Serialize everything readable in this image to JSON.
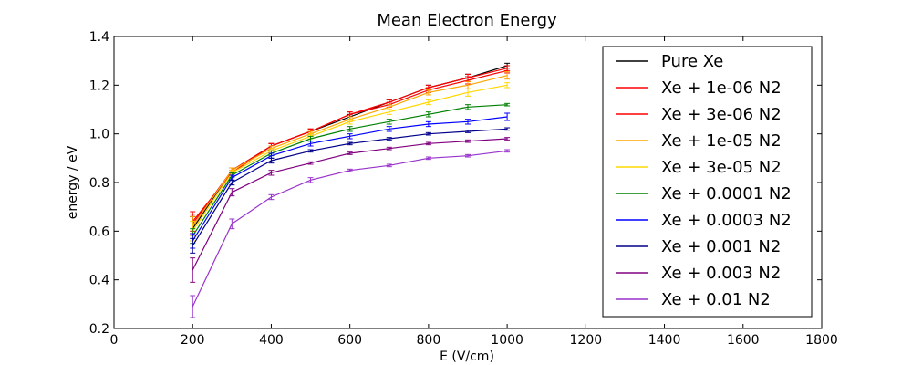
{
  "chart_data": {
    "type": "line",
    "title": "Mean Electron Energy",
    "xlabel": "E (V/cm)",
    "ylabel": "energy / eV",
    "xlim": [
      0,
      1800
    ],
    "ylim": [
      0.2,
      1.4
    ],
    "xticks": [
      0,
      200,
      400,
      600,
      800,
      1000,
      1200,
      1400,
      1600,
      1800
    ],
    "yticks": [
      0.2,
      0.4,
      0.6,
      0.8,
      1.0,
      1.2,
      1.4
    ],
    "grid": false,
    "legend_position": "top-right",
    "x": [
      200,
      300,
      400,
      500,
      600,
      700,
      800,
      900,
      1000
    ],
    "series": [
      {
        "name": "Pure Xe",
        "color": "#000000",
        "values": [
          0.61,
          0.85,
          0.95,
          1.01,
          1.07,
          1.13,
          1.19,
          1.23,
          1.28
        ],
        "errors": [
          0.05,
          0.01,
          0.01,
          0.01,
          0.01,
          0.01,
          0.01,
          0.015,
          0.01
        ]
      },
      {
        "name": "Xe + 1e-06 N2",
        "color": "#ff0000",
        "values": [
          0.63,
          0.85,
          0.95,
          1.01,
          1.08,
          1.13,
          1.19,
          1.23,
          1.27
        ],
        "errors": [
          0.04,
          0.01,
          0.01,
          0.01,
          0.01,
          0.01,
          0.01,
          0.015,
          0.01
        ]
      },
      {
        "name": "Xe + 3e-06 N2",
        "color": "#ff0000",
        "values": [
          0.64,
          0.84,
          0.95,
          1.01,
          1.08,
          1.12,
          1.18,
          1.22,
          1.26
        ],
        "errors": [
          0.04,
          0.01,
          0.01,
          0.01,
          0.01,
          0.01,
          0.01,
          0.015,
          0.01
        ]
      },
      {
        "name": "Xe + 1e-05 N2",
        "color": "#ffa500",
        "values": [
          0.62,
          0.85,
          0.94,
          1.0,
          1.06,
          1.11,
          1.17,
          1.2,
          1.24
        ],
        "errors": [
          0.04,
          0.01,
          0.01,
          0.01,
          0.01,
          0.01,
          0.01,
          0.015,
          0.015
        ]
      },
      {
        "name": "Xe + 3e-05 N2",
        "color": "#ffd700",
        "values": [
          0.6,
          0.84,
          0.93,
          0.99,
          1.05,
          1.09,
          1.13,
          1.17,
          1.2
        ],
        "errors": [
          0.04,
          0.01,
          0.01,
          0.01,
          0.01,
          0.01,
          0.01,
          0.015,
          0.01
        ]
      },
      {
        "name": "Xe + 0.0001 N2",
        "color": "#008000",
        "values": [
          0.58,
          0.83,
          0.92,
          0.98,
          1.02,
          1.05,
          1.08,
          1.11,
          1.12
        ],
        "errors": [
          0.03,
          0.01,
          0.01,
          0.01,
          0.01,
          0.01,
          0.01,
          0.01,
          0.005
        ]
      },
      {
        "name": "Xe + 0.0003 N2",
        "color": "#0000ff",
        "values": [
          0.56,
          0.82,
          0.91,
          0.96,
          0.99,
          1.02,
          1.04,
          1.05,
          1.07
        ],
        "errors": [
          0.03,
          0.01,
          0.01,
          0.01,
          0.01,
          0.01,
          0.01,
          0.01,
          0.015
        ]
      },
      {
        "name": "Xe + 0.001 N2",
        "color": "#00008b",
        "values": [
          0.54,
          0.8,
          0.89,
          0.93,
          0.96,
          0.98,
          1.0,
          1.01,
          1.02
        ],
        "errors": [
          0.03,
          0.01,
          0.01,
          0.005,
          0.005,
          0.005,
          0.005,
          0.005,
          0.005
        ]
      },
      {
        "name": "Xe + 0.003 N2",
        "color": "#800080",
        "values": [
          0.44,
          0.76,
          0.84,
          0.88,
          0.92,
          0.94,
          0.96,
          0.97,
          0.98
        ],
        "errors": [
          0.05,
          0.015,
          0.01,
          0.005,
          0.005,
          0.005,
          0.005,
          0.005,
          0.005
        ]
      },
      {
        "name": "Xe + 0.01 N2",
        "color": "#9932cc",
        "values": [
          0.29,
          0.63,
          0.74,
          0.81,
          0.85,
          0.87,
          0.9,
          0.91,
          0.93
        ],
        "errors": [
          0.045,
          0.02,
          0.01,
          0.01,
          0.005,
          0.005,
          0.005,
          0.005,
          0.005
        ]
      }
    ]
  }
}
